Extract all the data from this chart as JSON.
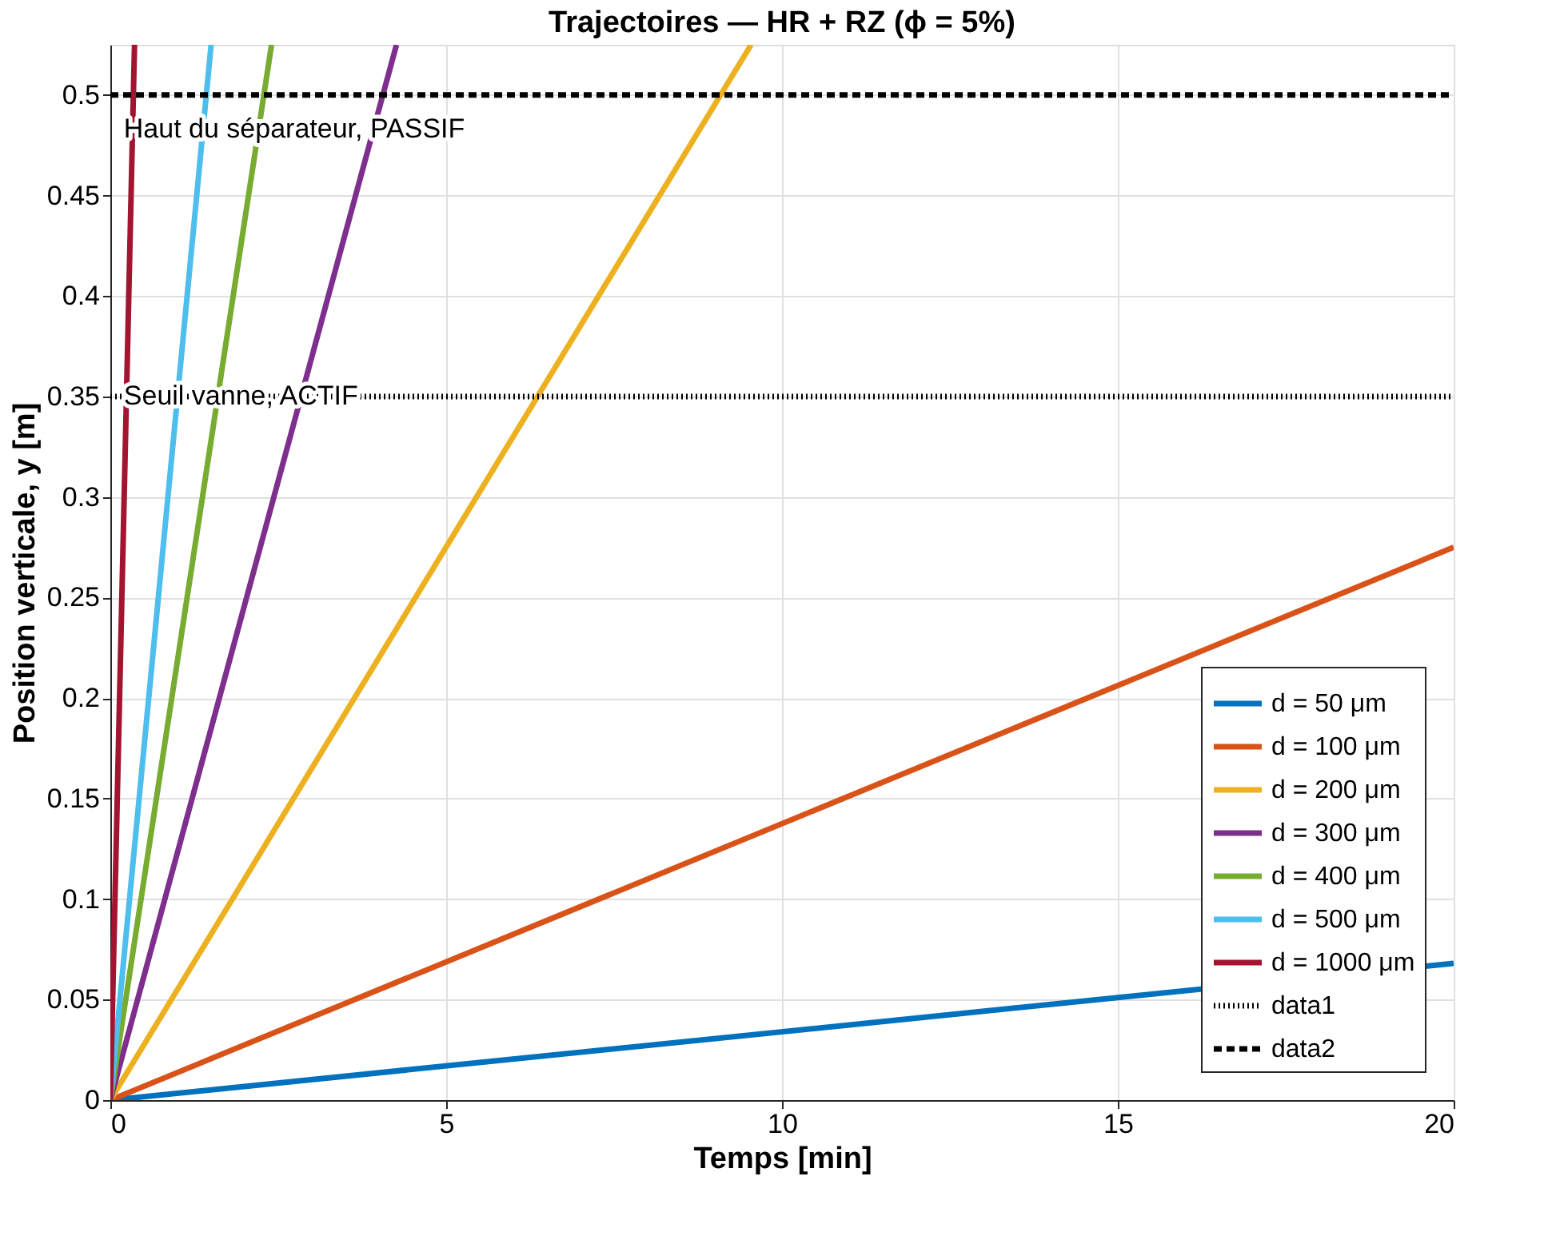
{
  "chart_data": {
    "type": "line",
    "title": "Trajectoires — HR + RZ (ϕ = 5%)",
    "xlabel": "Temps [min]",
    "ylabel": "Position verticale, y [m]",
    "xlim": [
      0,
      20
    ],
    "ylim": [
      0,
      0.525
    ],
    "xticks": [
      0,
      5,
      10,
      15,
      20
    ],
    "yticks": [
      0,
      0.05,
      0.1,
      0.15,
      0.2,
      0.25,
      0.3,
      0.35,
      0.4,
      0.45,
      0.5
    ],
    "grid": true,
    "legend": "bottom right",
    "series": [
      {
        "name": "d = 50 μm",
        "color": "#0072bd",
        "line_style": "solid",
        "x": [
          0,
          20
        ],
        "values": [
          0,
          0.068
        ]
      },
      {
        "name": "d = 100 μm",
        "color": "#d95319",
        "line_style": "solid",
        "x": [
          0,
          20
        ],
        "values": [
          0,
          0.275
        ]
      },
      {
        "name": "d = 200 μm",
        "color": "#edb120",
        "line_style": "solid",
        "x": [
          0,
          9.54
        ],
        "values": [
          0,
          0.525
        ]
      },
      {
        "name": "d = 300 μm",
        "color": "#7e2f8e",
        "line_style": "solid",
        "x": [
          0,
          4.26
        ],
        "values": [
          0,
          0.525
        ]
      },
      {
        "name": "d = 400 μm",
        "color": "#77ac30",
        "line_style": "solid",
        "x": [
          0,
          2.4
        ],
        "values": [
          0,
          0.525
        ]
      },
      {
        "name": "d = 500 μm",
        "color": "#4dbeee",
        "line_style": "solid",
        "x": [
          0,
          1.5
        ],
        "values": [
          0,
          0.525
        ]
      },
      {
        "name": "d = 1000 μm",
        "color": "#a2142f",
        "line_style": "solid",
        "x": [
          0,
          0.36
        ],
        "values": [
          0,
          0.525
        ]
      },
      {
        "name": "data1",
        "color": "#000000",
        "line_style": "dotted",
        "x": [
          0,
          20
        ],
        "values": [
          0.35,
          0.35
        ]
      },
      {
        "name": "data2",
        "color": "#000000",
        "line_style": "dashed",
        "x": [
          0,
          20
        ],
        "values": [
          0.5,
          0.5
        ]
      }
    ],
    "annotations": [
      {
        "text": "Haut du séparateur, PASSIF",
        "x": 0.2,
        "y": 0.483
      },
      {
        "text": "Seuil vanne, ACTIF",
        "x": 0.2,
        "y": 0.35
      }
    ]
  }
}
